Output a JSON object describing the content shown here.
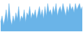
{
  "chart_data": {
    "type": "area",
    "values": [
      3,
      5,
      2,
      4,
      7,
      3,
      9,
      4,
      2,
      5,
      3,
      6,
      4,
      8,
      3,
      5,
      4,
      7,
      3,
      6,
      5,
      8,
      4,
      6,
      5,
      7,
      4,
      6,
      8,
      5,
      7,
      4,
      8,
      5,
      9,
      6,
      7,
      5,
      8,
      6,
      9,
      5,
      7,
      8,
      6,
      9,
      7,
      5,
      8,
      6,
      9,
      7,
      8,
      6,
      9,
      7,
      8,
      9,
      7,
      8
    ],
    "color": "#6ab4e8",
    "ylim": [
      0,
      9.9
    ],
    "grid": false,
    "tick_labels": false
  }
}
